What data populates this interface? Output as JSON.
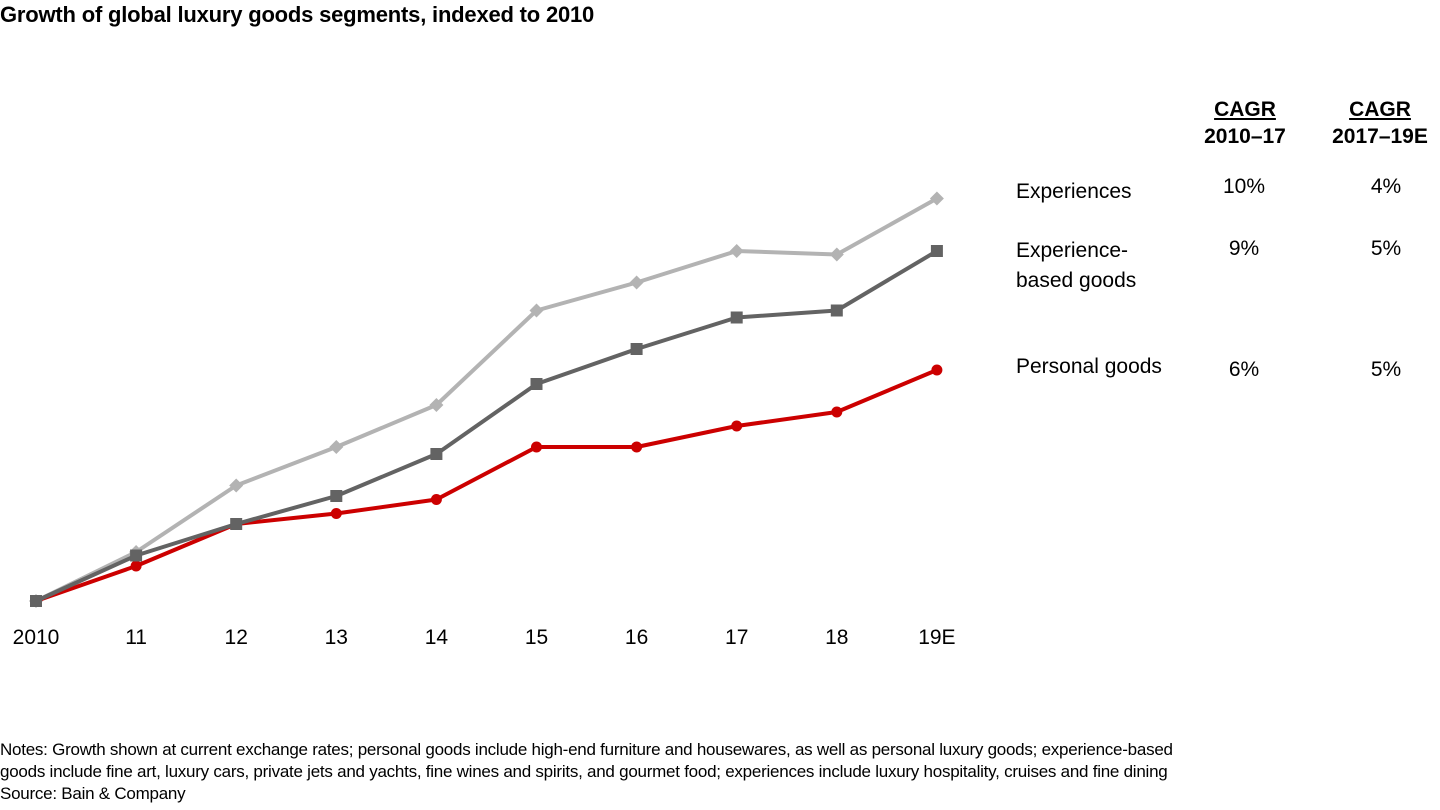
{
  "chart_data": {
    "type": "line",
    "title": "Growth of global luxury goods segments, indexed to 2010",
    "xlabel": "",
    "ylabel": "",
    "x": [
      "2010",
      "11",
      "12",
      "13",
      "14",
      "15",
      "16",
      "17",
      "18",
      "19E"
    ],
    "ylim": [
      100,
      220
    ],
    "grid": false,
    "series": [
      {
        "name": "Experiences",
        "color": "#b3b3b3",
        "marker": "diamond",
        "values": [
          100,
          114,
          133,
          144,
          156,
          183,
          191,
          200,
          199,
          215
        ]
      },
      {
        "name": "Experience-based goods",
        "color": "#636363",
        "marker": "square",
        "values": [
          100,
          113,
          122,
          130,
          142,
          162,
          172,
          181,
          183,
          200
        ]
      },
      {
        "name": "Personal goods",
        "color": "#cc0000",
        "marker": "circle",
        "values": [
          100,
          110,
          122,
          125,
          129,
          144,
          144,
          150,
          154,
          166
        ]
      }
    ],
    "legend": "right-table"
  },
  "cagr_table": {
    "headers": [
      {
        "line1": "CAGR",
        "line2": "2010–17"
      },
      {
        "line1": "CAGR",
        "line2": "2017–19E"
      }
    ],
    "rows": [
      {
        "label_line1": "Experiences",
        "label_line2": "",
        "cagr_2010_17": "10%",
        "cagr_2017_19": "4%"
      },
      {
        "label_line1": "Experience-",
        "label_line2": "based goods",
        "cagr_2010_17": "9%",
        "cagr_2017_19": "5%"
      },
      {
        "label_line1": "Personal goods",
        "label_line2": "",
        "cagr_2010_17": "6%",
        "cagr_2017_19": "5%"
      }
    ]
  },
  "notes": {
    "line1": "Notes: Growth shown at current exchange rates; personal goods include high-end furniture and housewares, as well as personal luxury goods; experience-based",
    "line2": "goods include fine art, luxury cars, private jets and yachts, fine wines and spirits, and gourmet food; experiences include luxury hospitality, cruises and fine dining",
    "source": "Source: Bain & Company"
  }
}
